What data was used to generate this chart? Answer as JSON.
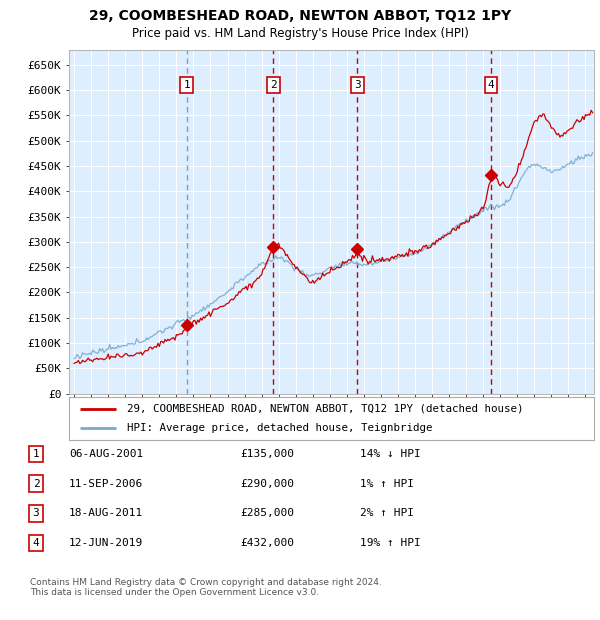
{
  "title": "29, COOMBESHEAD ROAD, NEWTON ABBOT, TQ12 1PY",
  "subtitle": "Price paid vs. HM Land Registry's House Price Index (HPI)",
  "ylim": [
    0,
    680000
  ],
  "xlim_start": 1994.7,
  "xlim_end": 2025.5,
  "plot_bg": "#ddeeff",
  "grid_color": "#ffffff",
  "sale_dates": [
    2001.6,
    2006.69,
    2011.62,
    2019.44
  ],
  "sale_prices": [
    135000,
    290000,
    285000,
    432000
  ],
  "sale_labels": [
    "1",
    "2",
    "3",
    "4"
  ],
  "sale_line_styles": [
    "dashed_gray",
    "dashed_red",
    "dashed_red",
    "dashed_red"
  ],
  "legend_line1": "29, COOMBESHEAD ROAD, NEWTON ABBOT, TQ12 1PY (detached house)",
  "legend_line2": "HPI: Average price, detached house, Teignbridge",
  "table_data": [
    [
      "1",
      "06-AUG-2001",
      "£135,000",
      "14% ↓ HPI"
    ],
    [
      "2",
      "11-SEP-2006",
      "£290,000",
      "1% ↑ HPI"
    ],
    [
      "3",
      "18-AUG-2011",
      "£285,000",
      "2% ↑ HPI"
    ],
    [
      "4",
      "12-JUN-2019",
      "£432,000",
      "19% ↑ HPI"
    ]
  ],
  "footnote1": "Contains HM Land Registry data © Crown copyright and database right 2024.",
  "footnote2": "This data is licensed under the Open Government Licence v3.0.",
  "line_color_red": "#cc0000",
  "line_color_blue": "#77aacc",
  "dashed_red": "#cc0000",
  "dashed_gray": "#999999"
}
